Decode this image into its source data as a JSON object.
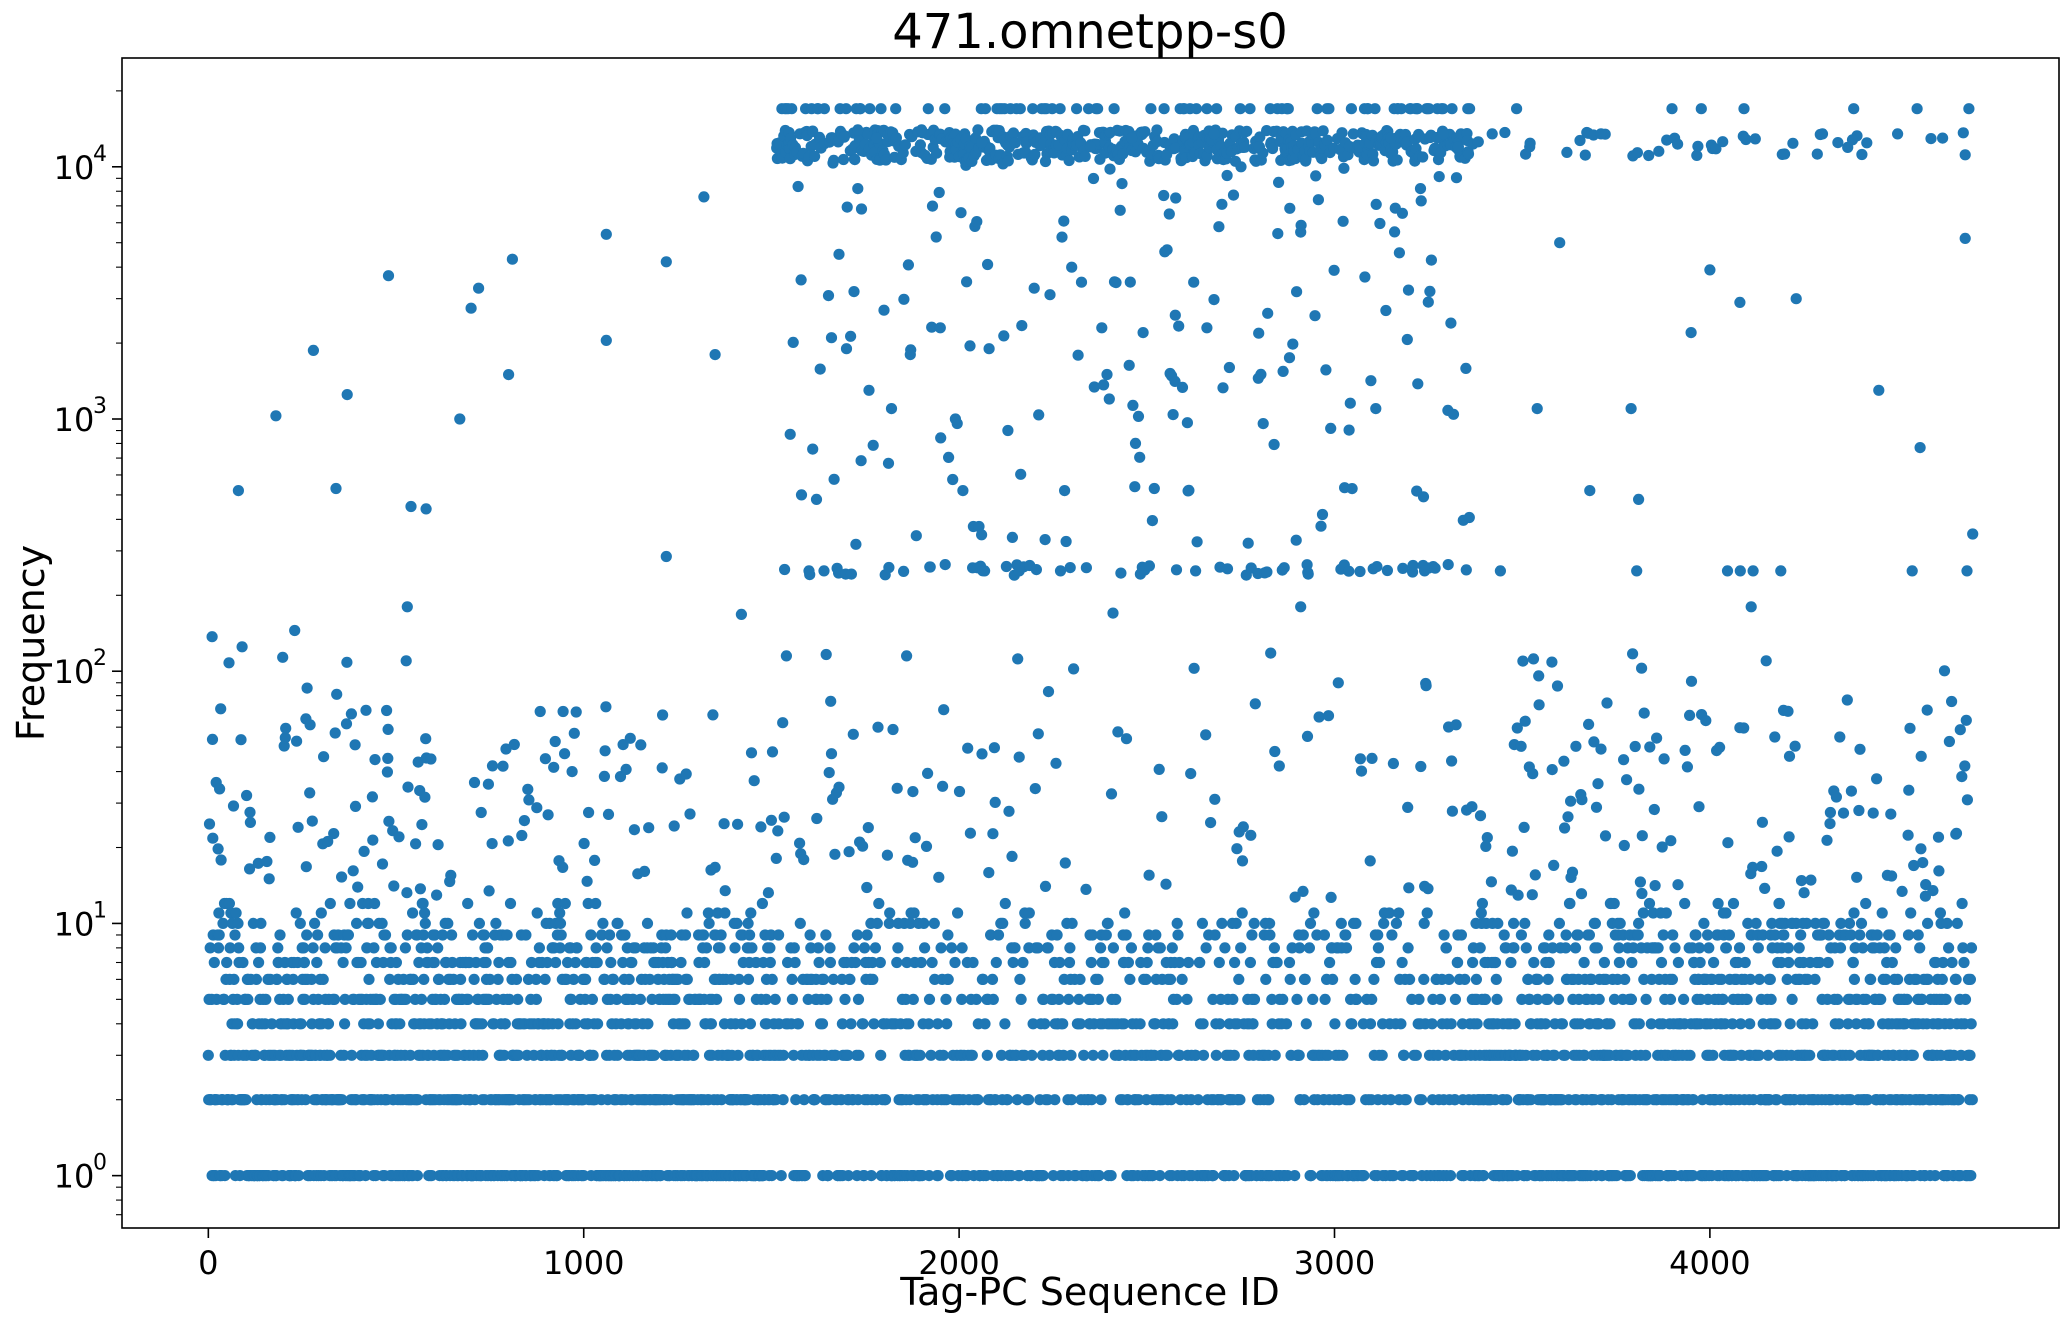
{
  "chart_data": {
    "type": "scatter",
    "title": "471.omnetpp-s0",
    "xlabel": "Tag-PC Sequence ID",
    "ylabel": "Frequency",
    "xlim": [
      -230,
      4930
    ],
    "ylim": [
      0.62,
      27000
    ],
    "yscale": "log",
    "grid": false,
    "x_ticks": [
      0,
      1000,
      2000,
      3000,
      4000
    ],
    "x_tick_labels": [
      "0",
      "1000",
      "2000",
      "3000",
      "4000"
    ],
    "y_ticks": [
      1,
      10,
      100,
      1000,
      10000
    ],
    "y_tick_labels": [
      {
        "base": "10",
        "exp": "0"
      },
      {
        "base": "10",
        "exp": "1"
      },
      {
        "base": "10",
        "exp": "2"
      },
      {
        "base": "10",
        "exp": "3"
      },
      {
        "base": "10",
        "exp": "4"
      }
    ],
    "marker_color": "#1f77b4",
    "n_points_approx": 4700,
    "series": [
      {
        "x": [
          10,
          80,
          90,
          180,
          230,
          280,
          340,
          370,
          480,
          530,
          540,
          580,
          670,
          700,
          720,
          800,
          810,
          1060,
          1060,
          1220,
          1220,
          1320,
          1350,
          1420,
          1540,
          1550,
          1580,
          1600,
          1610,
          1620,
          1640,
          1660,
          1680,
          1700,
          1720,
          1730,
          1740,
          1760,
          1780,
          1800,
          1820,
          1860,
          1870,
          1900,
          1950,
          1990,
          2010,
          2020,
          2050,
          2060,
          2080,
          2130,
          2160,
          2200,
          2230,
          2270,
          2300,
          2350,
          2380,
          2400,
          2410,
          2460,
          2470,
          2490,
          2520,
          2560,
          2630,
          2660,
          2680,
          2700,
          2720,
          2800,
          2830,
          2880,
          2910,
          2950,
          3010,
          3050,
          3110,
          3150,
          3240,
          3290,
          3310,
          3330,
          3420,
          3520,
          3540,
          3600,
          3680,
          3710,
          3790,
          3810,
          3950,
          4000,
          4080,
          4110,
          4150,
          4230,
          4300,
          4380,
          4450,
          4500,
          4560,
          4620,
          4680,
          4690,
          4700
        ],
        "y": [
          137,
          520,
          125,
          1030,
          145,
          1870,
          530,
          1250,
          3700,
          180,
          450,
          440,
          1000,
          2750,
          3300,
          1500,
          4300,
          2050,
          5400,
          285,
          4200,
          7600,
          1800,
          168,
          115,
          870,
          500,
          250,
          760,
          480,
          250,
          2100,
          4500,
          1900,
          3200,
          14000,
          6800,
          1300,
          13000,
          2700,
          1100,
          115,
          1800,
          14000,
          2300,
          1000,
          520,
          3500,
          14000,
          12500,
          1900,
          900,
          250,
          3300,
          10500,
          250,
          4000,
          12000,
          2300,
          1200,
          170,
          13000,
          800,
          2200,
          530,
          6500,
          250,
          2300,
          13500,
          7100,
          1600,
          12000,
          118,
          1750,
          180,
          9200,
          90,
          13500,
          1100,
          13000,
          250,
          13500,
          2400,
          12000,
          13500,
          12000,
          1100,
          5000,
          520,
          13500,
          1100,
          480,
          2200,
          3900,
          2900,
          180,
          110,
          3000,
          13500,
          12800,
          1300,
          13500,
          770,
          13000,
          5200,
          17000,
          350
        ]
      }
    ]
  }
}
